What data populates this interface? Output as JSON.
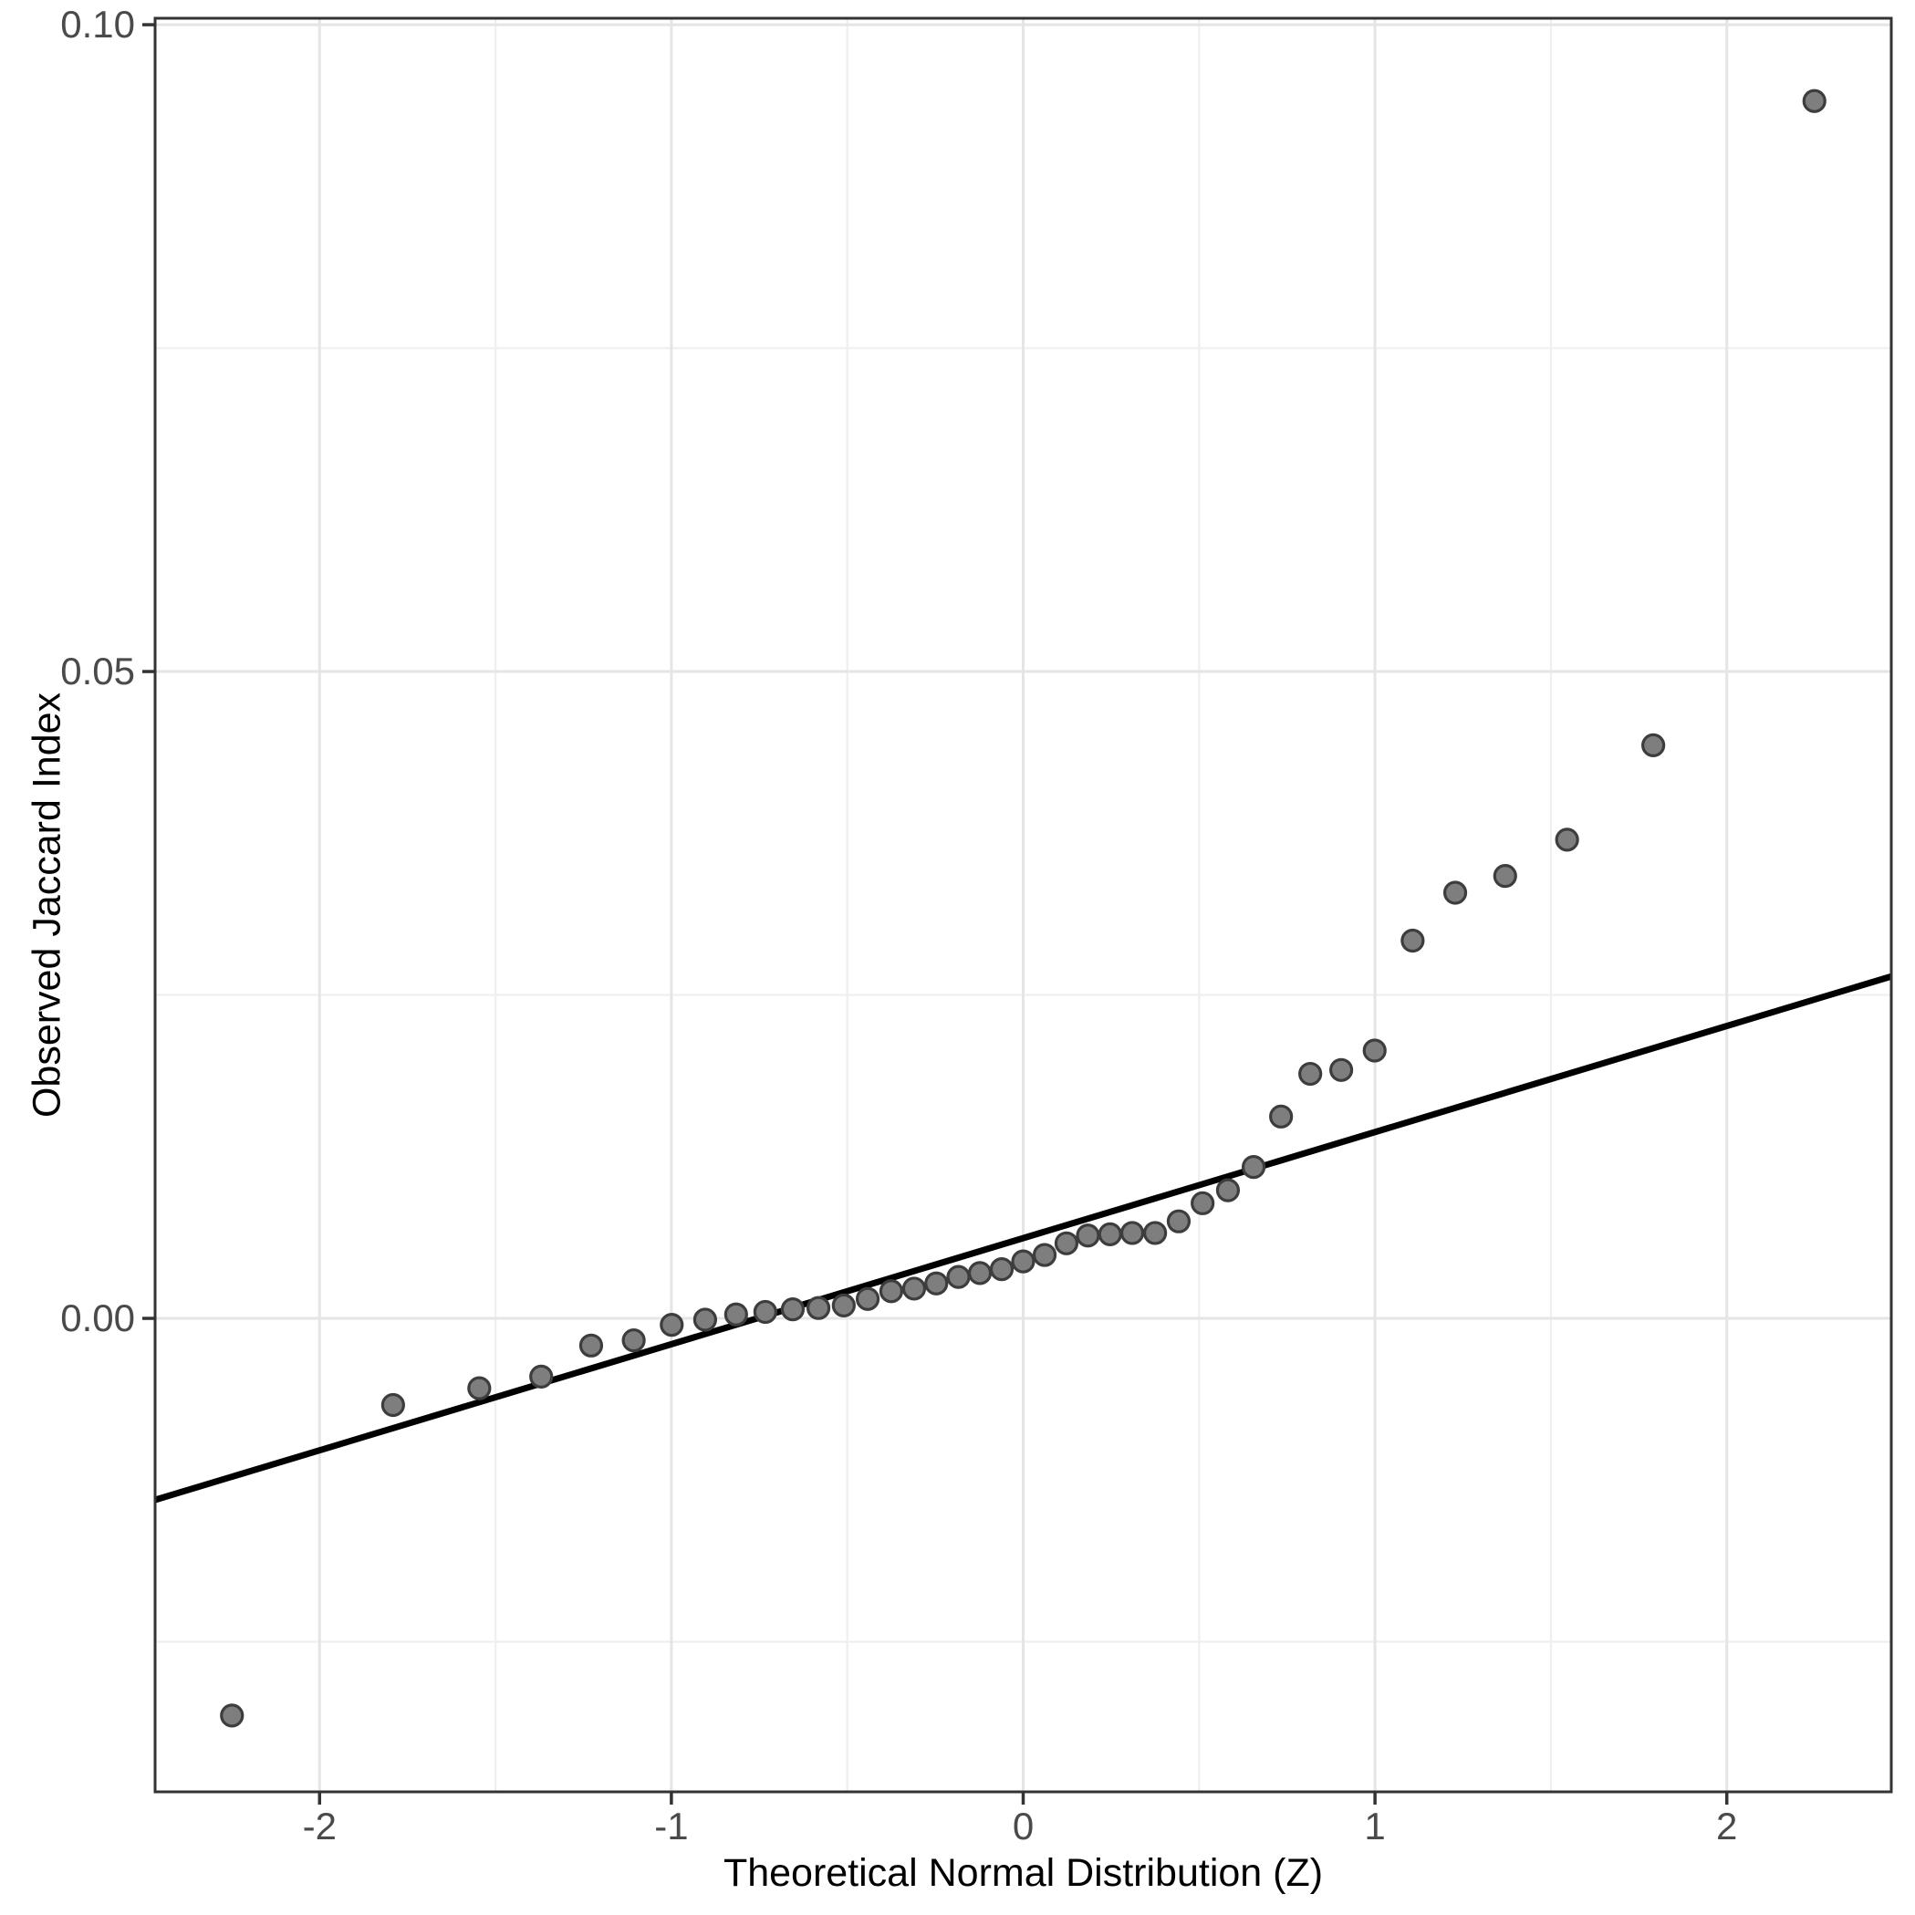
{
  "chart_data": {
    "type": "scatter",
    "title": "",
    "xlabel": "Theoretical Normal Distribution (Z)",
    "ylabel": "Observed Jaccard Index",
    "legend_position": "none",
    "grid": "on",
    "x_range": [
      -2.4675,
      2.4675
    ],
    "y_range": [
      -0.0366,
      0.1005
    ],
    "x_ticks": [
      {
        "value": -2,
        "label": "-2"
      },
      {
        "value": -1,
        "label": "-1"
      },
      {
        "value": 0,
        "label": "0"
      },
      {
        "value": 1,
        "label": "1"
      },
      {
        "value": 2,
        "label": "2"
      }
    ],
    "x_minor_ticks": [
      -1.5,
      -0.5,
      0.5,
      1.5
    ],
    "y_ticks": [
      {
        "value": 0.0,
        "label": "0.00"
      },
      {
        "value": 0.05,
        "label": "0.05"
      },
      {
        "value": 0.1,
        "label": "0.10"
      }
    ],
    "y_minor_ticks": [
      -0.025,
      0.025,
      0.075
    ],
    "series": [
      {
        "name": "observed-vs-theoretical-quantiles",
        "points": [
          [
            -2.249,
            -0.0307
          ],
          [
            -1.791,
            -0.0067
          ],
          [
            -1.546,
            -0.0054
          ],
          [
            -1.37,
            -0.0045
          ],
          [
            -1.228,
            -0.0021
          ],
          [
            -1.107,
            -0.0017
          ],
          [
            -0.999,
            -0.0005
          ],
          [
            -0.904,
            -0.0001
          ],
          [
            -0.816,
            0.0003
          ],
          [
            -0.733,
            0.0005
          ],
          [
            -0.655,
            0.0007
          ],
          [
            -0.582,
            0.0008
          ],
          [
            -0.51,
            0.001
          ],
          [
            -0.442,
            0.0015
          ],
          [
            -0.375,
            0.0021
          ],
          [
            -0.31,
            0.0023
          ],
          [
            -0.247,
            0.0027
          ],
          [
            -0.184,
            0.0032
          ],
          [
            -0.123,
            0.0035
          ],
          [
            -0.061,
            0.0038
          ],
          [
            0.0,
            0.0044
          ],
          [
            0.061,
            0.0049
          ],
          [
            0.123,
            0.0058
          ],
          [
            0.184,
            0.0064
          ],
          [
            0.247,
            0.0065
          ],
          [
            0.31,
            0.0066
          ],
          [
            0.375,
            0.0066
          ],
          [
            0.442,
            0.0075
          ],
          [
            0.51,
            0.0089
          ],
          [
            0.582,
            0.0099
          ],
          [
            0.655,
            0.0117
          ],
          [
            0.733,
            0.0156
          ],
          [
            0.816,
            0.0189
          ],
          [
            0.904,
            0.0192
          ],
          [
            0.999,
            0.0207
          ],
          [
            1.107,
            0.0292
          ],
          [
            1.228,
            0.0329
          ],
          [
            1.37,
            0.0342
          ],
          [
            1.546,
            0.037
          ],
          [
            1.791,
            0.0443
          ],
          [
            2.249,
            0.0941
          ]
        ]
      }
    ],
    "reference_line": {
      "name": "qq-line",
      "intercept": 0.0062,
      "slope": 0.0082
    }
  },
  "style": {
    "background": "#ffffff",
    "panel_background": "#ffffff",
    "panel_border_color": "#333333",
    "grid_major_color": "#e5e5e5",
    "grid_minor_color": "#efefef",
    "point_fill": "#7e7e7e",
    "point_stroke": "#3d3d3d",
    "line_color": "#000000",
    "tick_color": "#333333",
    "tick_label_color": "#4a4a4a",
    "axis_title_color": "#000000"
  }
}
